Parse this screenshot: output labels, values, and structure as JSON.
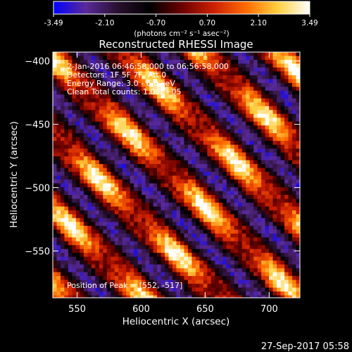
{
  "chart_data": {
    "type": "heatmap",
    "title": "Reconstructed RHESSI Image",
    "xlabel": "Heliocentric X (arcsec)",
    "ylabel": "Heliocentric Y (arcsec)",
    "xlim": [
      531,
      724
    ],
    "ylim": [
      -587,
      -393
    ],
    "x_ticks": [
      550,
      600,
      650,
      700
    ],
    "y_ticks": [
      -400,
      -450,
      -500,
      -550
    ],
    "colorbar": {
      "min": -3.49,
      "max": 3.49,
      "ticks": [
        "-3.49",
        "-2.10",
        "-0.70",
        "0.70",
        "2.10",
        "3.49"
      ],
      "units": "(photons cm⁻² s⁻¹ asec⁻²)",
      "colors": [
        "#0000ff",
        "#5a2a9a",
        "#2a1030",
        "#000000",
        "#6a0000",
        "#cc2000",
        "#ff6a00",
        "#ffd040",
        "#ffffff"
      ]
    },
    "annotations": {
      "time": "2-Jan-2016 06:46:58.000 to 06:56:58.000",
      "detectors": "Detectors: 1F 5F 7F, Att 0",
      "energy": "Energy Range: 3.0 - 6.0 keV",
      "clean": "Clean    Total counts: 1.09E+05",
      "peak": "Position of Peak = [552, -517]"
    },
    "footer_timestamp": "27-Sep-2017 05:58",
    "grid": false
  }
}
